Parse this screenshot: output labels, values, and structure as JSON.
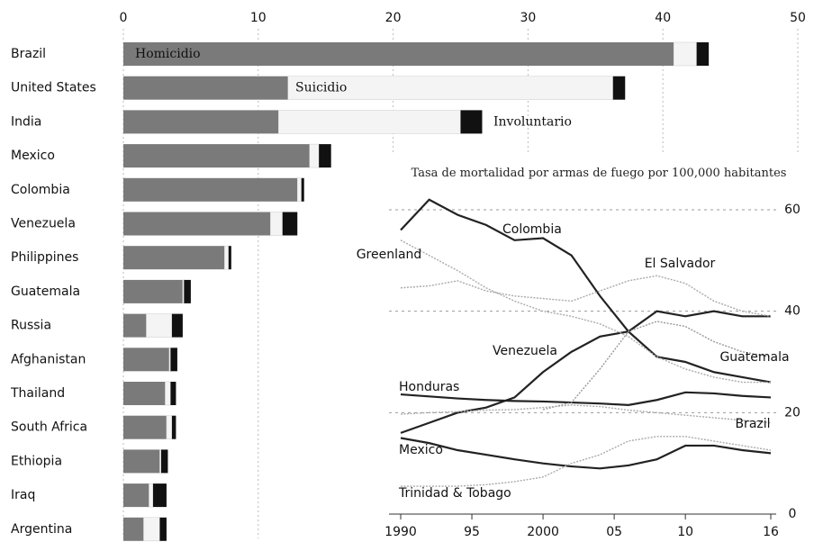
{
  "chart_data": [
    {
      "type": "bar",
      "orientation": "horizontal",
      "stacked": true,
      "categories": [
        "Brazil",
        "United States",
        "India",
        "Mexico",
        "Colombia",
        "Venezuela",
        "Philippines",
        "Guatemala",
        "Russia",
        "Afghanistan",
        "Thailand",
        "South Africa",
        "Ethiopia",
        "Iraq",
        "Argentina"
      ],
      "series": [
        {
          "name": "Homicidio",
          "color": "#7a7a7a",
          "values": [
            40.8,
            12.2,
            11.5,
            13.8,
            12.9,
            10.9,
            7.5,
            4.4,
            1.7,
            3.4,
            3.1,
            3.2,
            2.7,
            1.9,
            1.5
          ]
        },
        {
          "name": "Suicidio",
          "color": "#f4f4f4",
          "values": [
            1.7,
            24.1,
            13.5,
            0.7,
            0.3,
            0.9,
            0.3,
            0.1,
            1.9,
            0.1,
            0.4,
            0.4,
            0.1,
            0.3,
            1.2
          ]
        },
        {
          "name": "Involuntario",
          "color": "#111111",
          "values": [
            0.9,
            0.9,
            1.6,
            0.9,
            0.2,
            1.1,
            0.2,
            0.5,
            0.8,
            0.5,
            0.4,
            0.3,
            0.5,
            1.0,
            0.5
          ]
        }
      ],
      "xlim": [
        0,
        50
      ],
      "xticks": [
        0,
        10,
        20,
        30,
        40,
        50
      ],
      "grid": true
    },
    {
      "type": "line",
      "title": "Tasa de mortalidad por armas de fuego por 100,000 habitantes",
      "x": [
        1990,
        1992,
        1994,
        1996,
        1998,
        2000,
        2002,
        2004,
        2006,
        2008,
        2010,
        2012,
        2014,
        2016
      ],
      "series": [
        {
          "name": "Colombia",
          "color": "#222222",
          "values": [
            56,
            62,
            59,
            57,
            54,
            54.4,
            51,
            43,
            36,
            31,
            30,
            28,
            27,
            26
          ]
        },
        {
          "name": "Venezuela",
          "color": "#222222",
          "values": [
            16,
            18,
            20,
            21,
            23,
            28,
            32,
            35,
            36,
            40,
            39,
            40,
            39,
            39
          ]
        },
        {
          "name": "Honduras",
          "color": "#222222",
          "values": [
            23.6,
            23.2,
            22.8,
            22.5,
            22.3,
            22.2,
            22,
            21.8,
            21.5,
            22.5,
            24,
            23.8,
            23.3,
            23
          ]
        },
        {
          "name": "Mexico",
          "color": "#222222",
          "values": [
            15,
            14,
            12.6,
            11.7,
            10.8,
            10,
            9.4,
            9,
            9.6,
            10.8,
            13.5,
            13.5,
            12.6,
            12
          ]
        },
        {
          "name": "Guatemala",
          "color": "#999999",
          "values": [
            null,
            null,
            null,
            null,
            null,
            20.6,
            22,
            28.6,
            36,
            38,
            37,
            34,
            32,
            31
          ]
        },
        {
          "name": "El Salvador",
          "color": "#aaaaaa",
          "values": [
            44.6,
            45,
            46,
            44,
            43,
            42.5,
            42,
            44,
            46,
            47,
            45.5,
            42,
            40,
            39
          ]
        },
        {
          "name": "Greenland",
          "color": "#aaaaaa",
          "values": [
            54,
            51,
            48,
            44.6,
            42,
            40,
            39,
            37.5,
            35,
            31,
            28.6,
            27,
            26,
            26
          ]
        },
        {
          "name": "Brazil",
          "color": "#aaaaaa",
          "values": [
            19.7,
            20,
            20.2,
            20.5,
            20.6,
            21,
            21.5,
            21.2,
            20.5,
            20,
            19.5,
            19,
            18.5,
            18
          ]
        },
        {
          "name": "Trinidad & Tobago",
          "color": "#aaaaaa",
          "values": [
            5.5,
            5.5,
            5.5,
            5.8,
            6.4,
            7.3,
            10,
            11.7,
            14.4,
            15.3,
            15.3,
            14.4,
            13.5,
            12.6
          ]
        }
      ],
      "xlim": [
        1990,
        2016
      ],
      "xticks": [
        1990,
        {
          "value": 1995,
          "label": "95"
        },
        2000,
        {
          "value": 2005,
          "label": "05"
        },
        {
          "value": 2010,
          "label": "10"
        },
        {
          "value": 2016,
          "label": "16"
        }
      ],
      "ylim": [
        0,
        60
      ],
      "yticks": [
        0,
        20,
        40,
        60
      ],
      "grid": true
    }
  ]
}
